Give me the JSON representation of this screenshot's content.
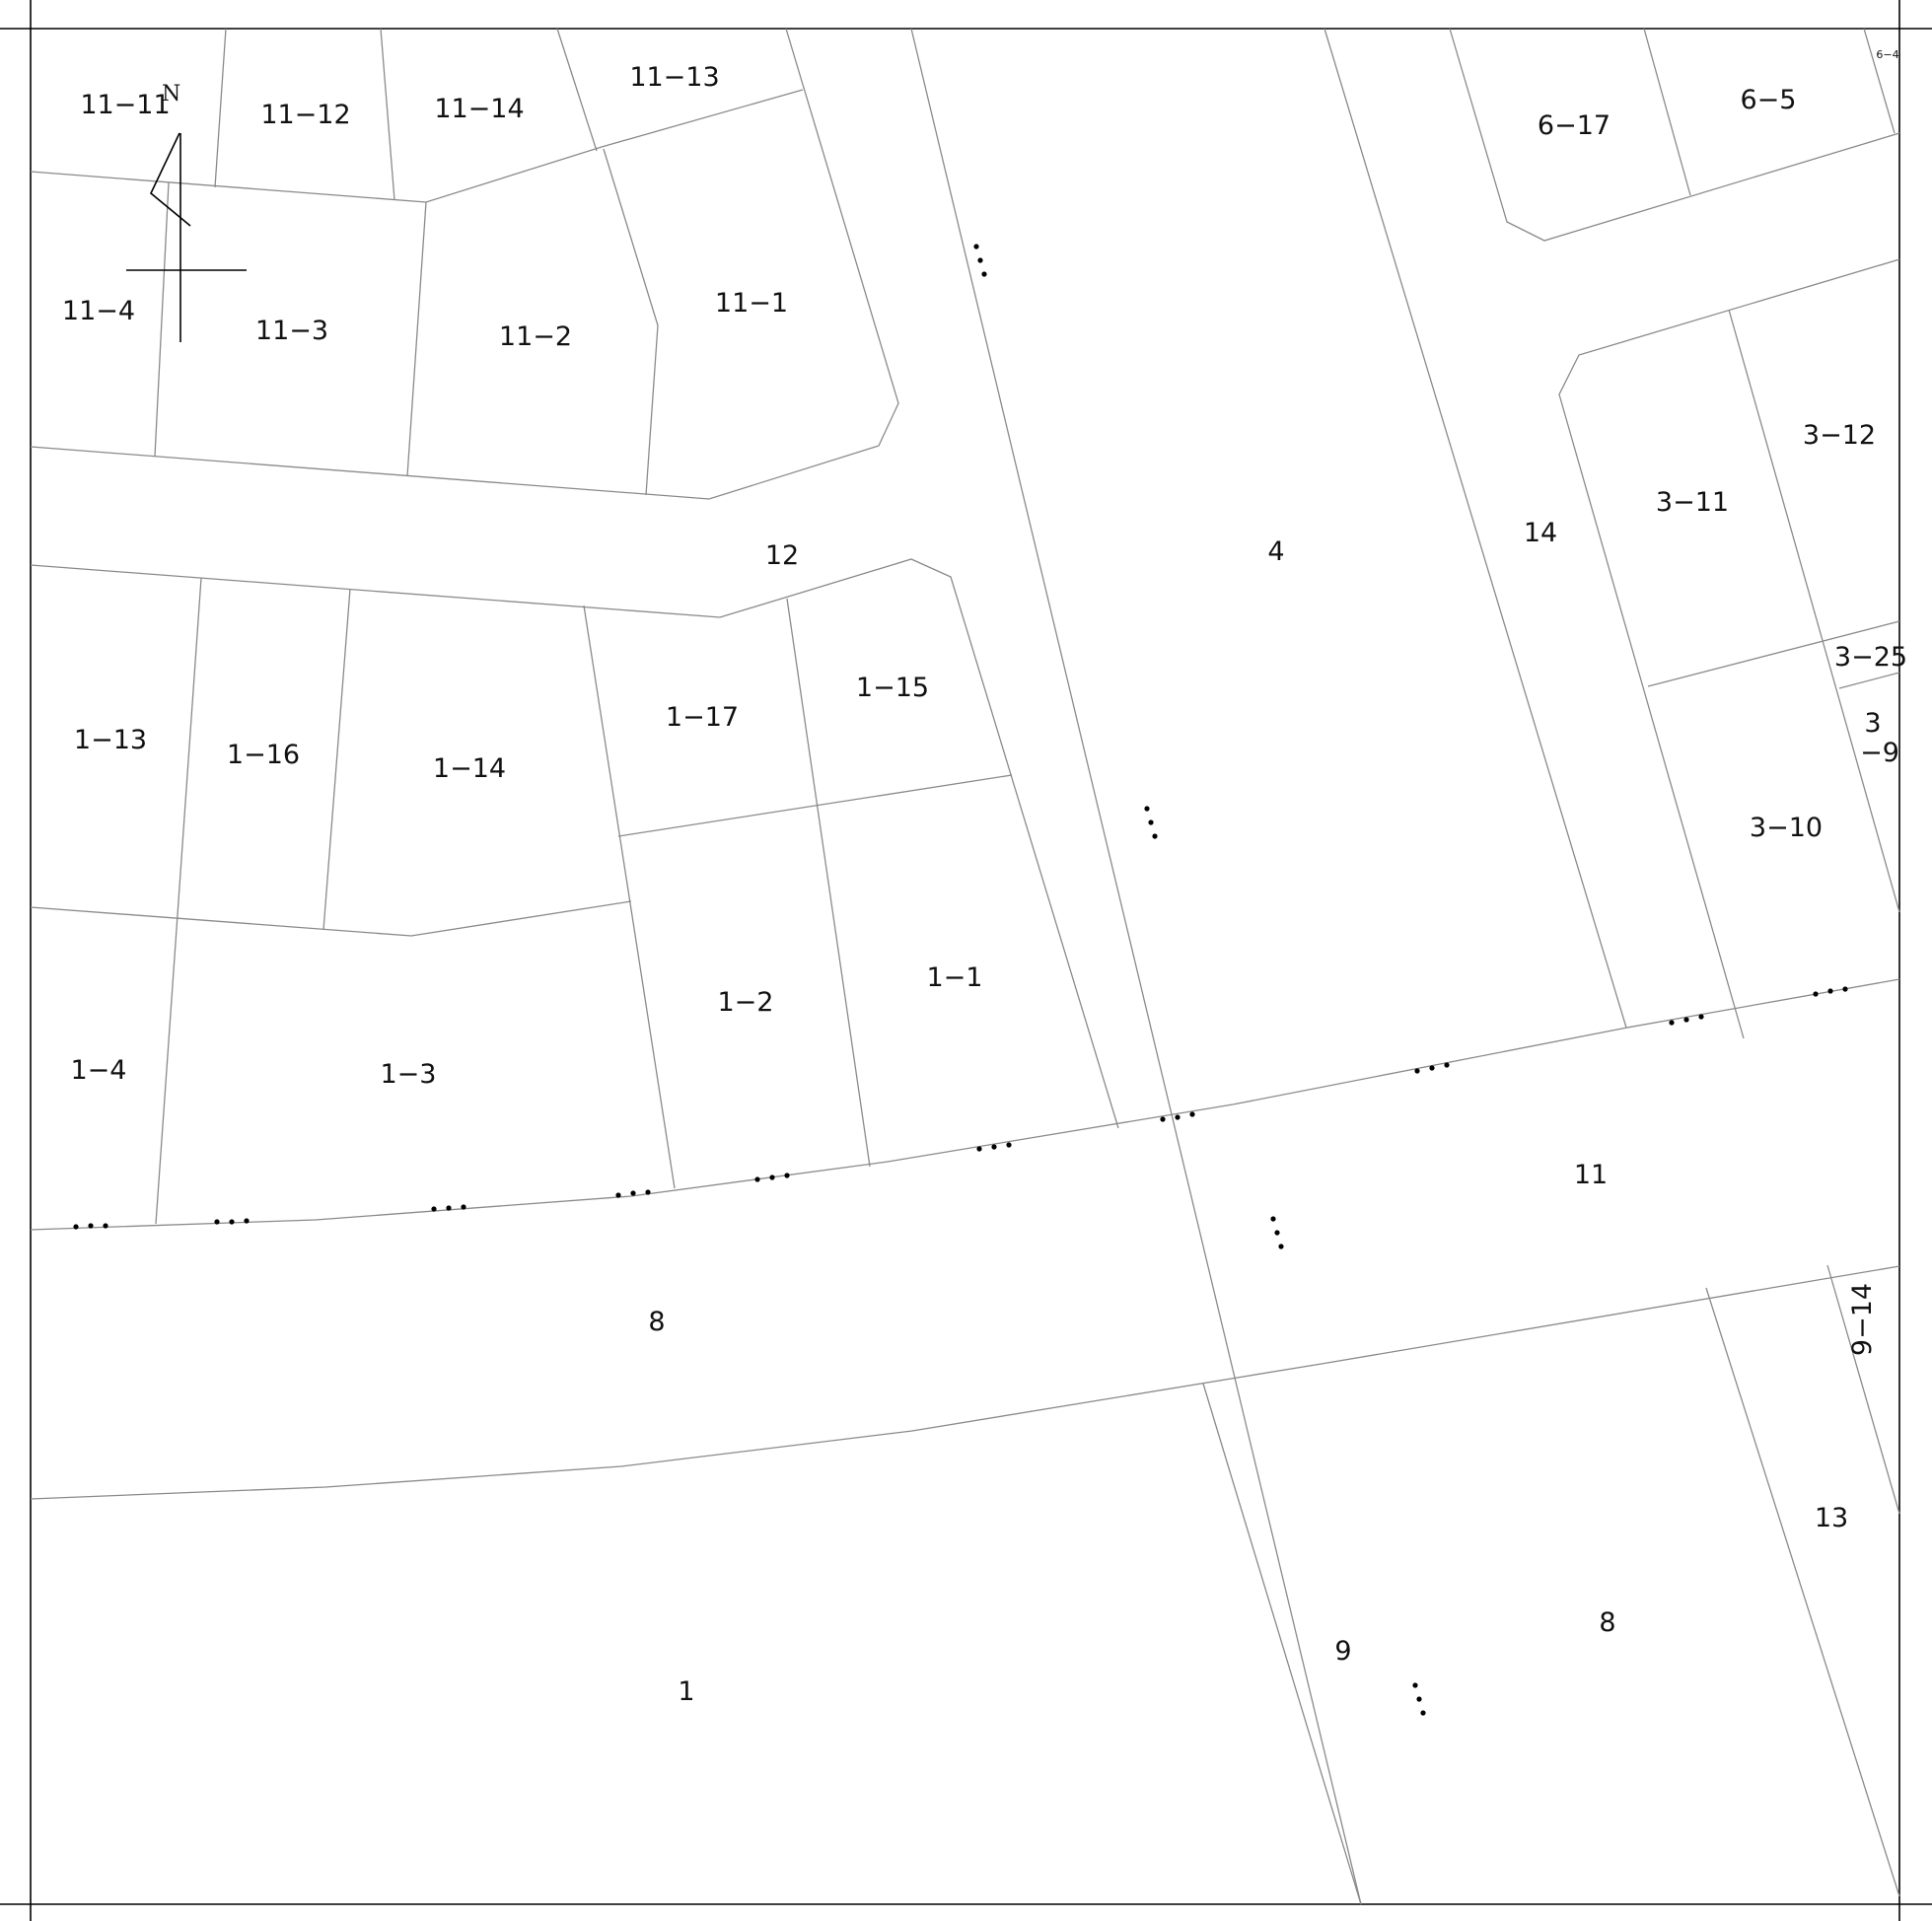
{
  "map": {
    "north_letter": "N",
    "parcels": [
      {
        "id": "11-11",
        "label": "11−11"
      },
      {
        "id": "11-12",
        "label": "11−12"
      },
      {
        "id": "11-14",
        "label": "11−14"
      },
      {
        "id": "11-13",
        "label": "11−13"
      },
      {
        "id": "11-4",
        "label": "11−4"
      },
      {
        "id": "11-3",
        "label": "11−3"
      },
      {
        "id": "11-2",
        "label": "11−2"
      },
      {
        "id": "11-1",
        "label": "11−1"
      },
      {
        "id": "12",
        "label": "12"
      },
      {
        "id": "4",
        "label": "4"
      },
      {
        "id": "14",
        "label": "14"
      },
      {
        "id": "6-17",
        "label": "6−17"
      },
      {
        "id": "6-5",
        "label": "6−5"
      },
      {
        "id": "6-4",
        "label": "6−4"
      },
      {
        "id": "3-12",
        "label": "3−12"
      },
      {
        "id": "3-11",
        "label": "3−11"
      },
      {
        "id": "3-25",
        "label": "3−25"
      },
      {
        "id": "3-9-top",
        "label": "3"
      },
      {
        "id": "3-9-bottom",
        "label": "−9"
      },
      {
        "id": "3-10",
        "label": "3−10"
      },
      {
        "id": "1-13",
        "label": "1−13"
      },
      {
        "id": "1-16",
        "label": "1−16"
      },
      {
        "id": "1-14",
        "label": "1−14"
      },
      {
        "id": "1-17",
        "label": "1−17"
      },
      {
        "id": "1-15",
        "label": "1−15"
      },
      {
        "id": "1-4",
        "label": "1−4"
      },
      {
        "id": "1-3",
        "label": "1−3"
      },
      {
        "id": "1-2",
        "label": "1−2"
      },
      {
        "id": "1-1",
        "label": "1−1"
      },
      {
        "id": "11",
        "label": "11"
      },
      {
        "id": "8-road",
        "label": "8"
      },
      {
        "id": "9-14",
        "label": "9−14"
      },
      {
        "id": "13",
        "label": "13"
      },
      {
        "id": "8",
        "label": "8"
      },
      {
        "id": "9",
        "label": "9"
      },
      {
        "id": "1",
        "label": "1"
      }
    ]
  }
}
